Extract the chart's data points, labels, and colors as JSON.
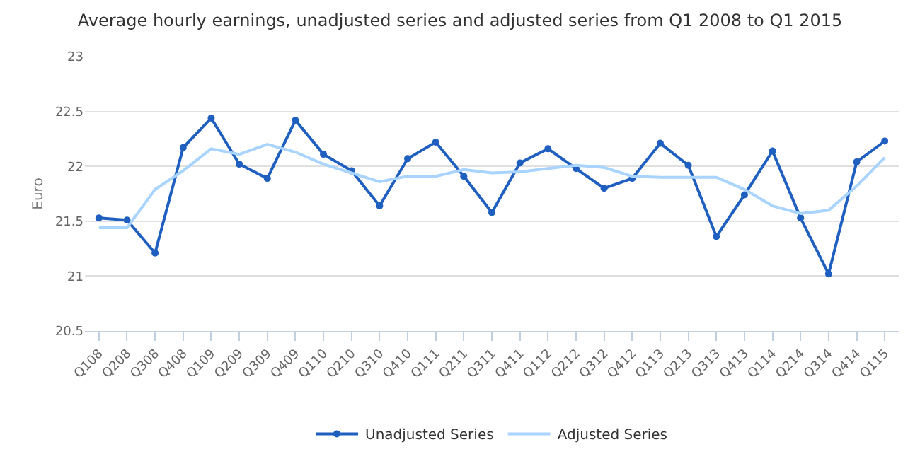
{
  "chart_data": {
    "type": "line",
    "title": "Average hourly earnings, unadjusted series and adjusted series from Q1 2008 to Q1 2015",
    "ylabel": "Euro",
    "categories": [
      "Q108",
      "Q208",
      "Q308",
      "Q408",
      "Q109",
      "Q209",
      "Q309",
      "Q409",
      "Q110",
      "Q210",
      "Q310",
      "Q410",
      "Q111",
      "Q211",
      "Q311",
      "Q411",
      "Q112",
      "Q212",
      "Q312",
      "Q412",
      "Q113",
      "Q213",
      "Q313",
      "Q413",
      "Q114",
      "Q214",
      "Q314",
      "Q414",
      "Q115"
    ],
    "series": [
      {
        "name": "Unadjusted Series",
        "color": "#1f5fbf",
        "marker": "circle",
        "values": [
          21.53,
          21.51,
          21.21,
          22.17,
          22.44,
          22.02,
          21.89,
          22.42,
          22.11,
          21.96,
          21.64,
          22.07,
          22.22,
          21.91,
          21.58,
          22.03,
          22.16,
          21.98,
          21.8,
          21.89,
          22.21,
          22.01,
          21.36,
          21.74,
          22.14,
          21.53,
          21.02,
          22.04,
          22.23
        ]
      },
      {
        "name": "Adjusted Series",
        "color": "#a8d4ff",
        "marker": "none",
        "values": [
          21.44,
          21.44,
          21.79,
          21.96,
          22.16,
          22.11,
          22.2,
          22.13,
          22.02,
          21.94,
          21.86,
          21.91,
          21.91,
          21.97,
          21.94,
          21.95,
          21.98,
          22.01,
          21.99,
          21.91,
          21.9,
          21.9,
          21.9,
          21.79,
          21.64,
          21.57,
          21.6,
          21.82,
          22.08
        ]
      }
    ],
    "ylim": [
      20.5,
      23
    ],
    "yticks": [
      20.5,
      21,
      21.5,
      22,
      22.5,
      23
    ],
    "grid": "y",
    "legend": "bottom"
  }
}
